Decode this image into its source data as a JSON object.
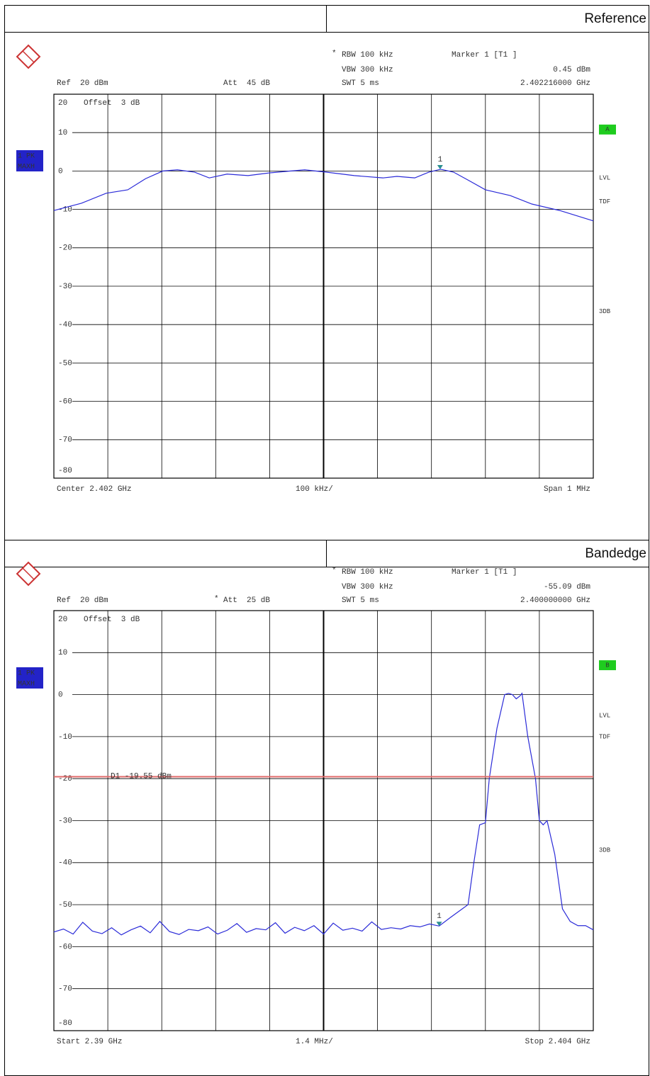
{
  "table": {
    "headers": [
      "Reference",
      "Bandedge"
    ]
  },
  "chart_data": [
    {
      "type": "line",
      "color": "#2b2bd8",
      "grid": true,
      "ref": "Ref  20 dBm",
      "att": "Att  45 dB",
      "rbw_flag": "*",
      "rbw": "RBW 100 kHz",
      "vbw": "VBW 300 kHz",
      "swt": "SWT 5 ms",
      "marker_title": "Marker 1 [T1 ]",
      "marker_level": "0.45 dBm",
      "marker_freq": "2.402216000 GHz",
      "offset": "Offset  3 dB",
      "bottom_left": "Center 2.402 GHz",
      "bottom_center": "100 kHz/",
      "bottom_right": "Span 1 MHz",
      "trace_label": "1 PK",
      "trace_detector": "MAXH",
      "screen": "A",
      "side_labels": [
        "LVL",
        "TDF",
        "3DB"
      ],
      "xlim": [
        2.4015,
        2.4025
      ],
      "xticks": [
        2.4015,
        2.4016,
        2.4017,
        2.4018,
        2.4019,
        2.402,
        2.4021,
        2.4022,
        2.4023,
        2.4024,
        2.4025
      ],
      "ylim": [
        -80,
        20
      ],
      "yticks": [
        20,
        10,
        0,
        -10,
        -20,
        -30,
        -40,
        -50,
        -60,
        -70,
        -80
      ],
      "x": [
        2.4015,
        2.401551,
        2.401597,
        2.401637,
        2.40167,
        2.401702,
        2.401729,
        2.401761,
        2.401788,
        2.401821,
        2.40186,
        2.401899,
        2.401939,
        2.401965,
        2.402005,
        2.402057,
        2.40211,
        2.402136,
        2.402169,
        2.402195,
        2.402217,
        2.402241,
        2.402267,
        2.4023,
        2.402346,
        2.402386,
        2.402438,
        2.4025
      ],
      "values": [
        -10.3,
        -8.4,
        -5.8,
        -4.9,
        -2,
        0,
        0.3,
        -0.3,
        -1.8,
        -0.8,
        -1.2,
        -0.5,
        0,
        0.3,
        -0.3,
        -1.2,
        -1.8,
        -1.4,
        -1.8,
        -0.3,
        0.45,
        -0.3,
        -2.3,
        -4.9,
        -6.4,
        -8.6,
        -10.3,
        -13
      ],
      "marker": {
        "label": "1",
        "x": 2.402216,
        "value": 0.45,
        "color": "#2a8f8f"
      }
    },
    {
      "type": "line",
      "color": "#2b2bd8",
      "grid": true,
      "ref": "Ref  20 dBm",
      "att_flag": "*",
      "att": "Att  25 dB",
      "rbw_flag": "*",
      "rbw": "RBW 100 kHz",
      "vbw": "VBW 300 kHz",
      "swt": "SWT 5 ms",
      "marker_title": "Marker 1 [T1 ]",
      "marker_level": "-55.09 dBm",
      "marker_freq": "2.400000000 GHz",
      "offset": "Offset  3 dB",
      "bottom_left": "Start 2.39 GHz",
      "bottom_center": "1.4 MHz/",
      "bottom_right": "Stop 2.404 GHz",
      "trace_label": "1 PK",
      "trace_detector": "MAXH",
      "screen": "B",
      "side_labels": [
        "LVL",
        "TDF",
        "3DB"
      ],
      "xlim": [
        2.39,
        2.404
      ],
      "xticks": [
        2.39,
        2.3914,
        2.3928,
        2.3942,
        2.3956,
        2.397,
        2.3984,
        2.3998,
        2.4012,
        2.4026,
        2.404
      ],
      "ylim": [
        -80,
        20
      ],
      "yticks": [
        20,
        10,
        0,
        -10,
        -20,
        -30,
        -40,
        -50,
        -60,
        -70,
        -80
      ],
      "x": [
        2.39,
        2.39025,
        2.3905,
        2.39075,
        2.391,
        2.39125,
        2.3915,
        2.39175,
        2.392,
        2.39225,
        2.3925,
        2.39275,
        2.393,
        2.39325,
        2.3935,
        2.39375,
        2.394,
        2.39425,
        2.3945,
        2.39475,
        2.395,
        2.39525,
        2.3955,
        2.39575,
        2.396,
        2.39625,
        2.3965,
        2.39675,
        2.397,
        2.39725,
        2.3975,
        2.39775,
        2.398,
        2.39825,
        2.3985,
        2.39875,
        2.399,
        2.39925,
        2.3995,
        2.39975,
        2.4,
        2.4003,
        2.4006,
        2.40075,
        2.4009,
        2.40105,
        2.4012,
        2.4013,
        2.4015,
        2.4017,
        2.4018,
        2.4019,
        2.402,
        2.4021,
        2.40215,
        2.4023,
        2.4025,
        2.4026,
        2.4027,
        2.4028,
        2.403,
        2.4032,
        2.4034,
        2.4036,
        2.4038,
        2.404
      ],
      "values": [
        -56.5,
        -55.8,
        -57.0,
        -54.2,
        -56.3,
        -56.9,
        -55.5,
        -57.2,
        -56.0,
        -55.1,
        -56.7,
        -54.0,
        -56.4,
        -57.1,
        -55.9,
        -56.2,
        -55.3,
        -57.0,
        -56.1,
        -54.5,
        -56.6,
        -55.7,
        -56.0,
        -54.3,
        -56.8,
        -55.4,
        -56.2,
        -55.0,
        -57.0,
        -54.4,
        -56.1,
        -55.6,
        -56.3,
        -54.1,
        -55.9,
        -55.5,
        -55.8,
        -55.0,
        -55.3,
        -54.6,
        -55.09,
        -53,
        -51,
        -50,
        -40,
        -31,
        -30.5,
        -20,
        -8,
        0,
        0.3,
        0,
        -1,
        -0.3,
        0.3,
        -10,
        -20,
        -30,
        -31,
        -30,
        -38,
        -51,
        -54,
        -55,
        -55,
        -56
      ],
      "threshold": {
        "label": "D1 -19.55 dBm",
        "value": -19.55,
        "color": "#e06a6a"
      },
      "marker": {
        "label": "1",
        "x": 2.4,
        "value": -55.09,
        "color": "#2a8f8f"
      }
    }
  ]
}
